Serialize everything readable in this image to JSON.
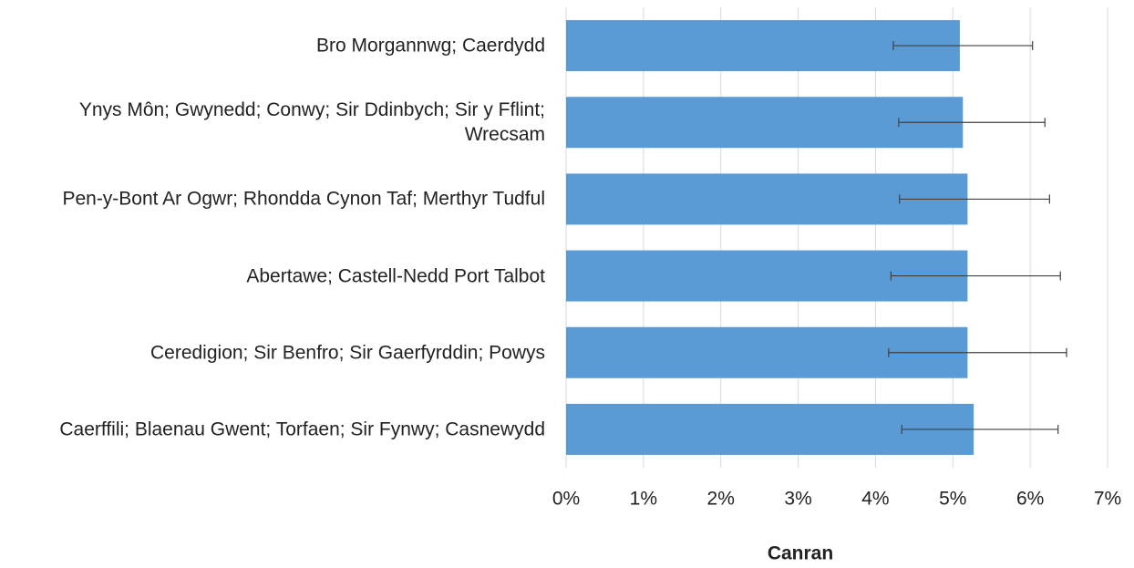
{
  "chart_data": {
    "type": "bar",
    "orientation": "horizontal",
    "categories": [
      "Bro Morgannwg; Caerdydd",
      "Ynys Môn; Gwynedd; Conwy; Sir Ddinbych; Sir y Fflint; Wrecsam",
      "Pen-y-Bont Ar Ogwr; Rhondda Cynon Taf; Merthyr Tudful",
      "Abertawe; Castell-Nedd Port Talbot",
      "Ceredigion; Sir Benfro; Sir Gaerfyrddin; Powys",
      "Caerffili; Blaenau Gwent; Torfaen; Sir Fynwy; Casnewydd"
    ],
    "values": [
      5.09,
      5.13,
      5.19,
      5.19,
      5.19,
      5.27
    ],
    "error_low": [
      4.23,
      4.3,
      4.31,
      4.2,
      4.17,
      4.34
    ],
    "error_high": [
      6.03,
      6.19,
      6.25,
      6.39,
      6.47,
      6.36
    ],
    "color": "#5b9bd5",
    "xlabel": "Canran",
    "xlim": [
      0,
      7
    ],
    "xticks": [
      {
        "value": 0,
        "label": "0%"
      },
      {
        "value": 1,
        "label": "1%"
      },
      {
        "value": 2,
        "label": "2%"
      },
      {
        "value": 3,
        "label": "3%"
      },
      {
        "value": 4,
        "label": "4%"
      },
      {
        "value": 5,
        "label": "5%"
      },
      {
        "value": 6,
        "label": "6%"
      },
      {
        "value": 7,
        "label": "7%"
      }
    ],
    "grid": true
  }
}
